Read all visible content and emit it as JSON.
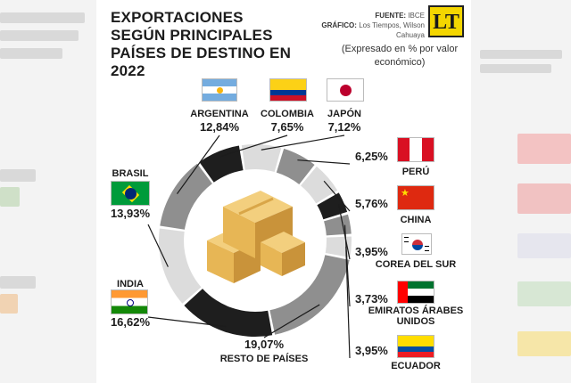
{
  "title": "EXPORTACIONES SEGÚN PRINCIPALES PAÍSES DE DESTINO EN 2022",
  "source_label": "FUENTE:",
  "source_value": "IBCE",
  "graphic_label": "GRÁFICO:",
  "graphic_value": "Los Tiempos, Wilson Cahuaya",
  "logo_text": "LT",
  "note": "(Expresado en % por valor económico)",
  "colors": {
    "dark": "#1e1e1e",
    "mid": "#8f8f8f",
    "light": "#dcdcdc",
    "box": "#e7b655",
    "box_side": "#c9933a",
    "box_top": "#f3cf7e"
  },
  "chart_data": {
    "type": "pie",
    "variant": "donut",
    "title": "EXPORTACIONES SEGÚN PRINCIPALES PAÍSES DE DESTINO EN 2022",
    "unit": "%",
    "slices": [
      {
        "label": "ARGENTINA",
        "value": 12.84,
        "display": "12,84%",
        "flag": "argentina-flag",
        "tone": "mid"
      },
      {
        "label": "COLOMBIA",
        "value": 7.65,
        "display": "7,65%",
        "flag": "colombia-flag",
        "tone": "dark"
      },
      {
        "label": "JAPÓN",
        "value": 7.12,
        "display": "7,12%",
        "flag": "japan-flag",
        "tone": "light"
      },
      {
        "label": "PERÚ",
        "value": 6.25,
        "display": "6,25%",
        "flag": "peru-flag",
        "tone": "mid"
      },
      {
        "label": "CHINA",
        "value": 5.76,
        "display": "5,76%",
        "flag": "china-flag",
        "tone": "light"
      },
      {
        "label": "COREA DEL SUR",
        "value": 3.95,
        "display": "3,95%",
        "flag": "south-korea-flag",
        "tone": "dark"
      },
      {
        "label": "EMIRATOS ÁRABES UNIDOS",
        "value": 3.73,
        "display": "3,73%",
        "flag": "uae-flag",
        "tone": "mid"
      },
      {
        "label": "ECUADOR",
        "value": 3.95,
        "display": "3,95%",
        "flag": "ecuador-flag",
        "tone": "light"
      },
      {
        "label": "RESTO DE PAÍSES",
        "value": 19.07,
        "display": "19,07%",
        "flag": "",
        "tone": "mid"
      },
      {
        "label": "INDIA",
        "value": 16.62,
        "display": "16,62%",
        "flag": "india-flag",
        "tone": "dark"
      },
      {
        "label": "BRASIL",
        "value": 13.93,
        "display": "13,93%",
        "flag": "brazil-flag",
        "tone": "light"
      }
    ]
  }
}
